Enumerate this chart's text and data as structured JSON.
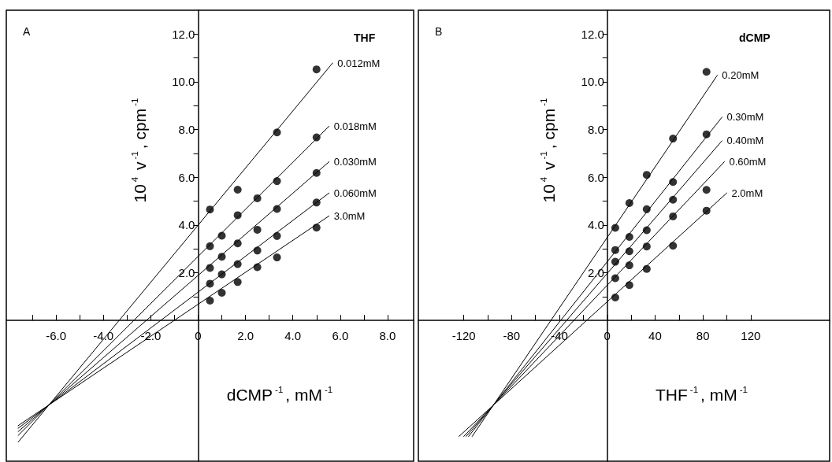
{
  "chart_data": [
    {
      "type": "scatter",
      "title": "A",
      "legend_title": "THF",
      "xlabel": "dCMP$^{-1}$, mM$^{-1}$",
      "ylabel": "10$^{4}$ v$^{-1}$, cpm$^{-1}$",
      "xlim": [
        -8.1,
        9.1
      ],
      "xticks": [
        {
          "value": -7,
          "label": null
        },
        {
          "value": -6,
          "label": "-6.0"
        },
        {
          "value": -5,
          "label": null
        },
        {
          "value": -4,
          "label": "-4.0"
        },
        {
          "value": -3,
          "label": null
        },
        {
          "value": -2,
          "label": "-2.0"
        },
        {
          "value": -1,
          "label": null
        },
        0,
        {
          "value": 1,
          "label": null
        },
        {
          "value": 2,
          "label": "2.0"
        },
        {
          "value": 3,
          "label": null
        },
        {
          "value": 4,
          "label": "4.0"
        },
        {
          "value": 5,
          "label": null
        },
        {
          "value": 6,
          "label": "6.0"
        },
        {
          "value": 7,
          "label": null
        },
        {
          "value": 8,
          "label": "8.0"
        }
      ],
      "ylim": [
        -5.9,
        13.0
      ],
      "yticks": [
        {
          "value": 1,
          "label": null
        },
        {
          "value": 2,
          "label": "2.0"
        },
        {
          "value": 3,
          "label": null
        },
        {
          "value": 4,
          "label": "4.0"
        },
        {
          "value": 5,
          "label": null
        },
        {
          "value": 6,
          "label": "6.0"
        },
        {
          "value": 7,
          "label": null
        },
        {
          "value": 8,
          "label": "8.0"
        },
        {
          "value": 9,
          "label": null
        },
        {
          "value": 10,
          "label": "10.0"
        },
        {
          "value": 11,
          "label": null
        },
        {
          "value": 12,
          "label": "12.0"
        }
      ],
      "series": [
        {
          "type": "scatter",
          "marker": "circle",
          "color": "#000000",
          "x": [
            0.5,
            1.67,
            3.33,
            5.0
          ],
          "values": [
            4.65,
            5.48,
            7.88,
            10.52
          ]
        },
        {
          "type": "scatter",
          "marker": "circle",
          "color": "#000000",
          "x": [
            0.5,
            1.0,
            1.67,
            2.5,
            3.33,
            5.0
          ],
          "values": [
            3.11,
            3.55,
            4.41,
            5.12,
            5.84,
            7.67
          ]
        },
        {
          "type": "scatter",
          "marker": "circle",
          "color": "#000000",
          "x": [
            0.5,
            1.0,
            1.67,
            2.5,
            3.33,
            5.0
          ],
          "values": [
            2.2,
            2.67,
            3.23,
            3.8,
            4.67,
            6.18
          ]
        },
        {
          "type": "scatter",
          "marker": "circle",
          "color": "#000000",
          "x": [
            0.5,
            1.0,
            1.67,
            2.5,
            3.33,
            5.0
          ],
          "values": [
            1.54,
            1.93,
            2.36,
            2.93,
            3.54,
            4.94
          ]
        },
        {
          "type": "scatter",
          "marker": "circle",
          "color": "#000000",
          "x": [
            0.5,
            1.0,
            1.67,
            2.5,
            3.33,
            5.0
          ],
          "values": [
            0.83,
            1.16,
            1.61,
            2.23,
            2.64,
            3.89
          ]
        },
        {
          "type": "line",
          "marker": "none",
          "name": "0.012mM",
          "color": "#000000",
          "x": [
            -7.6,
            5.68
          ],
          "values": [
            -5.1,
            10.79
          ]
        },
        {
          "type": "line",
          "marker": "none",
          "name": "0.018mM",
          "color": "#000000",
          "x": [
            -7.6,
            5.53
          ],
          "values": [
            -4.82,
            8.14
          ]
        },
        {
          "type": "line",
          "marker": "none",
          "name": "0.030mM",
          "color": "#000000",
          "x": [
            -7.6,
            5.53
          ],
          "values": [
            -4.66,
            6.65
          ]
        },
        {
          "type": "line",
          "marker": "none",
          "name": "0.060mM",
          "color": "#000000",
          "x": [
            -7.6,
            5.53
          ],
          "values": [
            -4.52,
            5.34
          ]
        },
        {
          "type": "line",
          "marker": "none",
          "name": "3.0mM",
          "color": "#000000",
          "x": [
            -7.6,
            5.53
          ],
          "values": [
            -4.41,
            4.38
          ]
        }
      ]
    },
    {
      "type": "scatter",
      "title": "B",
      "legend_title": "dCMP",
      "xlabel": "THF$^{-1}$, mM$^{-1}$",
      "ylabel": "10$^{4}$ v$^{-1}$, cpm$^{-1}$",
      "xlim": [
        -158,
        186
      ],
      "xticks": [
        -120,
        {
          "value": -100,
          "label": null
        },
        -80,
        {
          "value": -60,
          "label": null
        },
        -40,
        {
          "value": -20,
          "label": null
        },
        0,
        {
          "value": 20,
          "label": null
        },
        40,
        {
          "value": 60,
          "label": null
        },
        80,
        {
          "value": 100,
          "label": null
        },
        120
      ],
      "ylim": [
        -5.9,
        13.0
      ],
      "yticks": [
        {
          "value": 1,
          "label": null
        },
        {
          "value": 2,
          "label": "2.0"
        },
        {
          "value": 3,
          "label": null
        },
        {
          "value": 4,
          "label": "4.0"
        },
        {
          "value": 5,
          "label": null
        },
        {
          "value": 6,
          "label": "6.0"
        },
        {
          "value": 7,
          "label": null
        },
        {
          "value": 8,
          "label": "8.0"
        },
        {
          "value": 9,
          "label": null
        },
        {
          "value": 10,
          "label": "10.0"
        },
        {
          "value": 11,
          "label": null
        },
        {
          "value": 12,
          "label": "12.0"
        }
      ],
      "series": [
        {
          "type": "scatter",
          "marker": "circle",
          "color": "#000000",
          "x": [
            6.7,
            18.5,
            33,
            55,
            83
          ],
          "values": [
            3.88,
            4.92,
            6.1,
            7.62,
            10.42
          ]
        },
        {
          "type": "scatter",
          "marker": "circle",
          "color": "#000000",
          "x": [
            6.7,
            18.5,
            33,
            55,
            83
          ],
          "values": [
            2.95,
            3.5,
            4.66,
            5.8,
            7.8
          ]
        },
        {
          "type": "scatter",
          "marker": "circle",
          "color": "#000000",
          "x": [
            6.7,
            18.5,
            33,
            55
          ],
          "values": [
            2.46,
            2.9,
            3.78,
            5.06
          ]
        },
        {
          "type": "scatter",
          "marker": "circle",
          "color": "#000000",
          "x": [
            6.7,
            18.5,
            33,
            55,
            83
          ],
          "values": [
            1.77,
            2.31,
            3.1,
            4.36,
            5.47
          ]
        },
        {
          "type": "scatter",
          "marker": "circle",
          "color": "#000000",
          "x": [
            6.7,
            18.5,
            33,
            55,
            83
          ],
          "values": [
            0.96,
            1.48,
            2.16,
            3.13,
            4.6
          ]
        },
        {
          "type": "line",
          "marker": "none",
          "name": "0.20mM",
          "color": "#000000",
          "x": [
            -113,
            92
          ],
          "values": [
            -4.86,
            10.27
          ]
        },
        {
          "type": "line",
          "marker": "none",
          "name": "0.30mM",
          "color": "#000000",
          "x": [
            -116,
            96
          ],
          "values": [
            -4.86,
            8.52
          ]
        },
        {
          "type": "line",
          "marker": "none",
          "name": "0.40mM",
          "color": "#000000",
          "x": [
            -118,
            96
          ],
          "values": [
            -4.86,
            7.53
          ]
        },
        {
          "type": "line",
          "marker": "none",
          "name": "0.60mM",
          "color": "#000000",
          "x": [
            -120,
            98
          ],
          "values": [
            -4.86,
            6.65
          ]
        },
        {
          "type": "line",
          "marker": "none",
          "name": "2.0mM",
          "color": "#000000",
          "x": [
            -124,
            100
          ],
          "values": [
            -4.86,
            5.34
          ]
        }
      ]
    }
  ]
}
